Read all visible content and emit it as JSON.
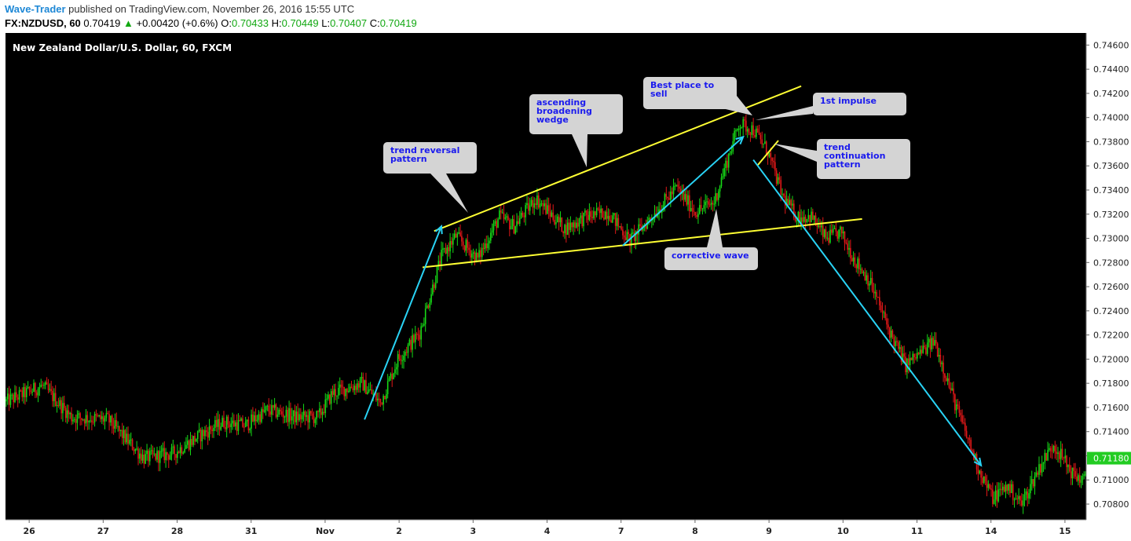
{
  "header": {
    "author": "Wave-Trader",
    "published_text": " published on TradingView.com, November 26, 2016 15:55 UTC",
    "symbol": "FX:NZDUSD, 60",
    "last": "0.70419",
    "up_arrow": "▲",
    "change": "+0.00420 (+0.6%)",
    "o_label": "O:",
    "o_value": "0.70433",
    "h_label": "H:",
    "h_value": "0.70449",
    "l_label": "L:",
    "l_value": "0.70407",
    "c_label": "C:",
    "c_value": "0.70419"
  },
  "chart_data": {
    "type": "candlestick",
    "title": "New Zealand Dollar/U.S. Dollar, 60, FXCM",
    "ylim": [
      0.7067,
      0.747
    ],
    "y_ticks": [
      "0.74600",
      "0.74400",
      "0.74200",
      "0.74000",
      "0.73800",
      "0.73600",
      "0.73400",
      "0.73200",
      "0.73000",
      "0.72800",
      "0.72600",
      "0.72400",
      "0.72200",
      "0.72000",
      "0.71800",
      "0.71600",
      "0.71400",
      "0.71200",
      "0.71000",
      "0.70800"
    ],
    "y_tick_values": [
      0.746,
      0.744,
      0.742,
      0.74,
      0.738,
      0.736,
      0.734,
      0.732,
      0.73,
      0.728,
      0.726,
      0.724,
      0.722,
      0.72,
      0.718,
      0.716,
      0.714,
      0.712,
      0.71,
      0.708
    ],
    "x_labels": [
      "26",
      "27",
      "28",
      "31",
      "Nov",
      "2",
      "3",
      "4",
      "7",
      "8",
      "9",
      "10",
      "11",
      "14",
      "15"
    ],
    "x_label_index": [
      5,
      56,
      107,
      158,
      209,
      260,
      311,
      362,
      413,
      464,
      515,
      566,
      617,
      668,
      719
    ],
    "current_price": "0.71180",
    "current_price_value": 0.7118,
    "colors": {
      "background": "#000000",
      "up": "#16d916",
      "down": "#e01818",
      "wedge": "#ffff33",
      "arrows": "#29d3f5",
      "axis_bg": "#ffffff",
      "price_tag": "#22cc22"
    },
    "price_path": [
      [
        0,
        0.7165
      ],
      [
        25,
        0.7178
      ],
      [
        45,
        0.7152
      ],
      [
        70,
        0.715
      ],
      [
        95,
        0.7118
      ],
      [
        115,
        0.7122
      ],
      [
        135,
        0.7138
      ],
      [
        150,
        0.7148
      ],
      [
        165,
        0.7145
      ],
      [
        180,
        0.7158
      ],
      [
        200,
        0.7152
      ],
      [
        215,
        0.7152
      ],
      [
        225,
        0.7172
      ],
      [
        245,
        0.718
      ],
      [
        258,
        0.7164
      ],
      [
        270,
        0.72
      ],
      [
        285,
        0.7222
      ],
      [
        300,
        0.7285
      ],
      [
        310,
        0.7302
      ],
      [
        325,
        0.7283
      ],
      [
        340,
        0.7318
      ],
      [
        350,
        0.731
      ],
      [
        365,
        0.7333
      ],
      [
        385,
        0.7308
      ],
      [
        400,
        0.7318
      ],
      [
        415,
        0.7322
      ],
      [
        430,
        0.7298
      ],
      [
        445,
        0.7318
      ],
      [
        462,
        0.7342
      ],
      [
        475,
        0.7322
      ],
      [
        488,
        0.733
      ],
      [
        505,
        0.7395
      ],
      [
        515,
        0.739
      ],
      [
        525,
        0.7372
      ],
      [
        535,
        0.7335
      ],
      [
        545,
        0.7318
      ],
      [
        555,
        0.7318
      ],
      [
        565,
        0.73
      ],
      [
        575,
        0.7305
      ],
      [
        585,
        0.7282
      ],
      [
        595,
        0.7265
      ],
      [
        610,
        0.722
      ],
      [
        620,
        0.7195
      ],
      [
        640,
        0.7215
      ],
      [
        655,
        0.716
      ],
      [
        670,
        0.711
      ],
      [
        680,
        0.7085
      ],
      [
        690,
        0.7095
      ],
      [
        700,
        0.708
      ],
      [
        712,
        0.711
      ],
      [
        722,
        0.713
      ],
      [
        735,
        0.7105
      ],
      [
        742,
        0.71
      ]
    ],
    "annotations": [
      {
        "id": "trend-reversal",
        "lines": [
          "trend reversal",
          "pattern"
        ]
      },
      {
        "id": "ascending-wedge",
        "lines": [
          "ascending",
          "broadening",
          "wedge"
        ]
      },
      {
        "id": "best-sell",
        "lines": [
          "Best place to",
          "sell"
        ]
      },
      {
        "id": "first-impulse",
        "lines": [
          "1st impulse"
        ]
      },
      {
        "id": "trend-continuation",
        "lines": [
          "trend",
          "continuation",
          "pattern"
        ]
      },
      {
        "id": "corrective-wave",
        "lines": [
          "corrective wave"
        ]
      }
    ],
    "wedge_lines": [
      {
        "name": "upper",
        "from": [
          295,
          0.7306
        ],
        "to": [
          548,
          0.7426
        ]
      },
      {
        "name": "lower",
        "from": [
          287,
          0.7276
        ],
        "to": [
          590,
          0.7316
        ]
      }
    ],
    "arrows": [
      {
        "from": [
          247,
          0.715
        ],
        "to": [
          300,
          0.731
        ]
      },
      {
        "from": [
          425,
          0.7294
        ],
        "to": [
          508,
          0.7384
        ]
      },
      {
        "from": [
          515,
          0.7365
        ],
        "to": [
          672,
          0.7112
        ]
      }
    ]
  }
}
